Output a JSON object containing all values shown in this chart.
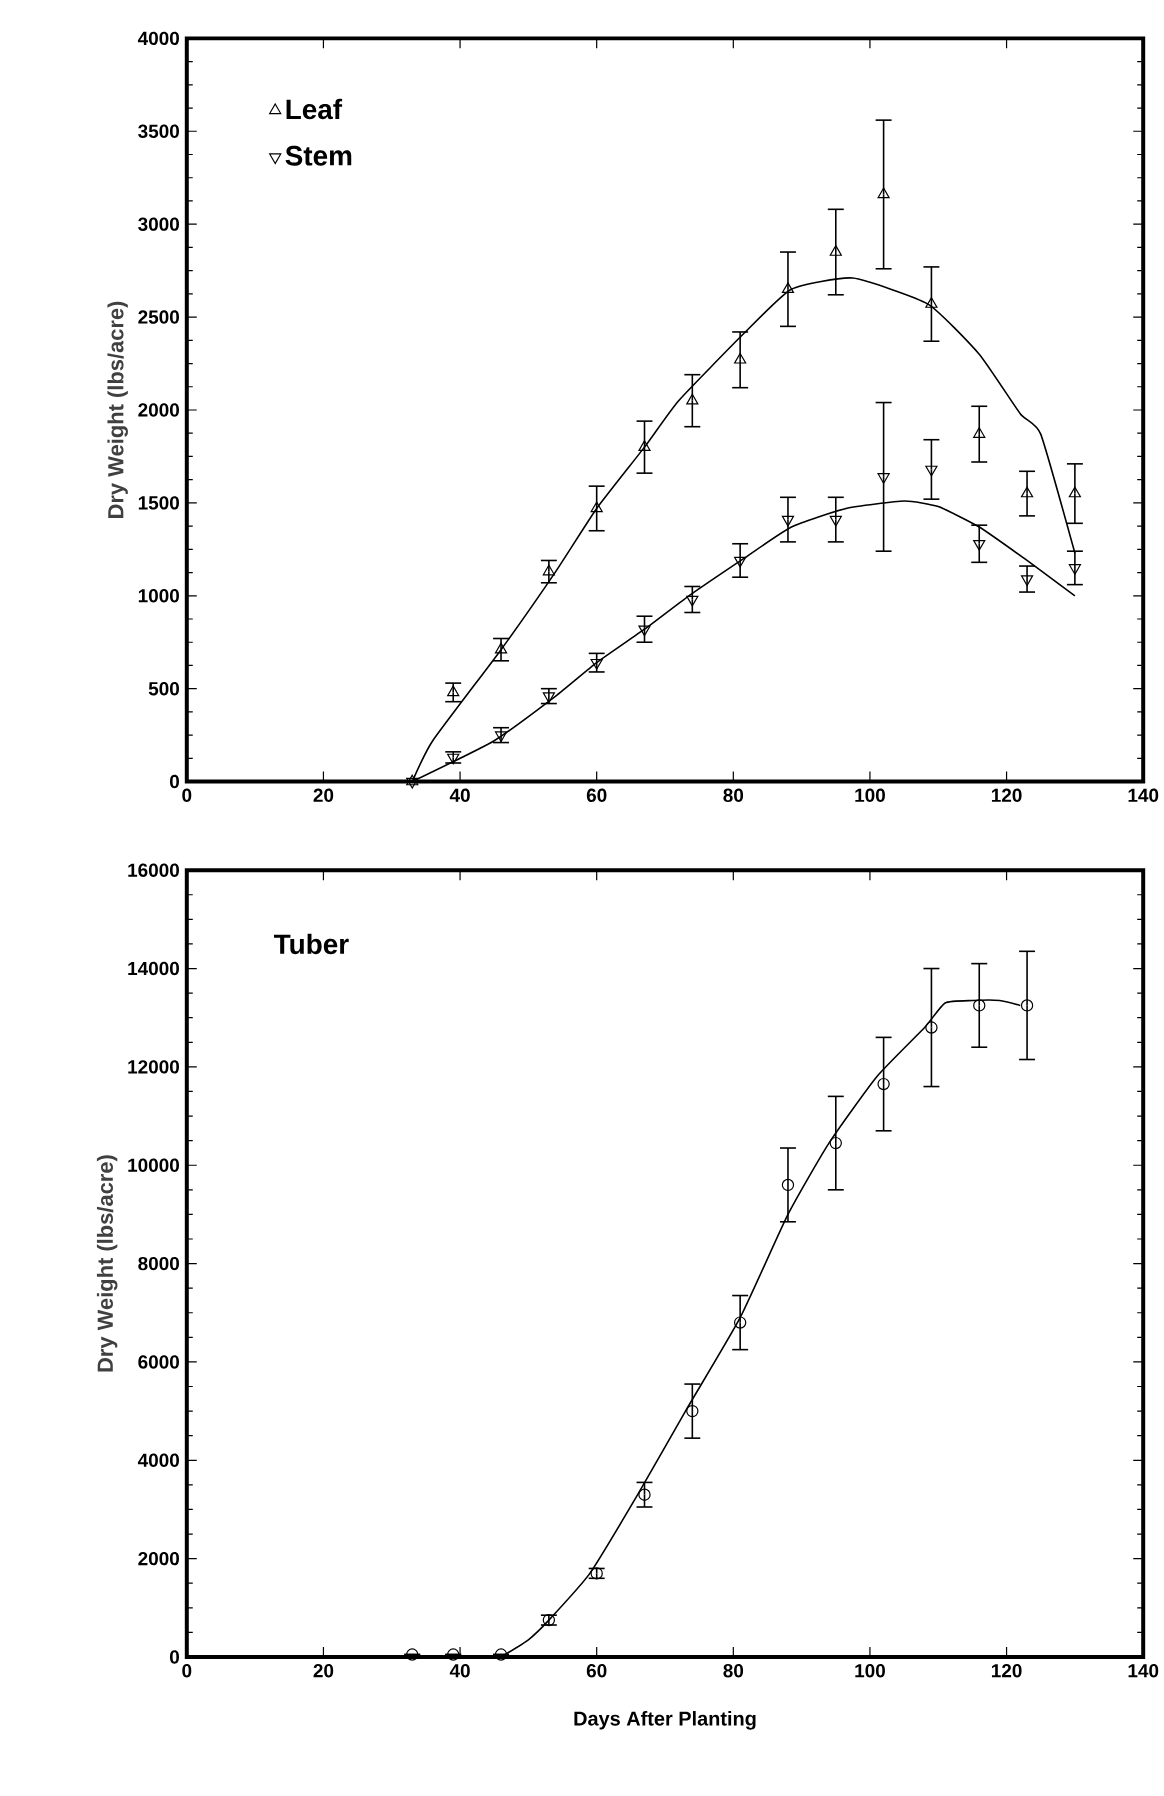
{
  "chart_data": [
    {
      "type": "scatter",
      "ylabel": "Dry Weight  (lbs/acre)",
      "xlim": [
        0,
        140
      ],
      "xticks": [
        0,
        20,
        40,
        60,
        80,
        100,
        120,
        140
      ],
      "ylim": [
        0,
        4000
      ],
      "yticks": [
        0,
        500,
        1000,
        1500,
        2000,
        2500,
        3000,
        3500,
        4000
      ],
      "legend": "top left",
      "series": [
        {
          "name": "Leaf",
          "color": "#000000",
          "marker": "triangle",
          "x": [
            33,
            39,
            46,
            53,
            60,
            67,
            74,
            81,
            88,
            95,
            102,
            109,
            116,
            123,
            130
          ],
          "values": [
            0,
            480,
            710,
            1130,
            1470,
            1800,
            2050,
            2270,
            2650,
            2850,
            3160,
            2570,
            1870,
            1550,
            1550
          ],
          "errors": [
            null,
            50,
            60,
            60,
            120,
            140,
            140,
            150,
            200,
            230,
            400,
            200,
            150,
            120,
            160
          ]
        },
        {
          "name": "Stem",
          "color": "#000000",
          "marker": "triangle_down",
          "x": [
            33,
            39,
            46,
            53,
            60,
            67,
            74,
            81,
            88,
            95,
            102,
            109,
            116,
            123,
            130
          ],
          "values": [
            0,
            130,
            250,
            460,
            640,
            820,
            980,
            1190,
            1410,
            1410,
            1640,
            1680,
            1280,
            1090,
            1150
          ],
          "errors": [
            null,
            30,
            40,
            40,
            50,
            70,
            70,
            90,
            120,
            120,
            400,
            160,
            100,
            70,
            90
          ]
        },
        {
          "type": "line",
          "color": "#000000",
          "x": [
            33,
            36,
            46,
            54,
            60,
            67,
            72,
            81.5,
            88.5,
            97.5,
            108.5,
            116,
            122,
            125,
            130
          ],
          "values": [
            0,
            220,
            710,
            1130,
            1470,
            1800,
            2050,
            2410,
            2650,
            2710,
            2570,
            2300,
            1980,
            1870,
            1230
          ]
        },
        {
          "type": "line",
          "color": "#000000",
          "x": [
            33,
            45,
            54,
            60,
            67,
            73.5,
            81.5,
            88.5,
            96.5,
            105,
            110,
            116,
            123,
            130
          ],
          "values": [
            0,
            220,
            460,
            640,
            820,
            1000,
            1200,
            1370,
            1470,
            1510,
            1480,
            1370,
            1190,
            1000
          ]
        }
      ]
    },
    {
      "type": "scatter",
      "xlabel": "Days After Planting",
      "ylabel": "Dry Weight  (lbs/acre)",
      "xlim": [
        0,
        140
      ],
      "xticks": [
        0,
        20,
        40,
        60,
        80,
        100,
        120,
        140
      ],
      "ylim": [
        0,
        16000
      ],
      "yticks": [
        0,
        2000,
        4000,
        6000,
        8000,
        10000,
        12000,
        14000,
        16000
      ],
      "legend": "top left",
      "series": [
        {
          "name": "Tuber",
          "color": "#000000",
          "marker": "circle",
          "x": [
            33,
            39,
            46,
            53,
            60,
            67,
            74,
            81,
            88,
            95,
            102,
            109,
            116,
            123
          ],
          "values": [
            50,
            50,
            50,
            750,
            1700,
            3300,
            5000,
            6800,
            9600,
            10450,
            11650,
            12800,
            13250,
            13250
          ],
          "errors": [
            null,
            null,
            null,
            100,
            100,
            250,
            550,
            550,
            750,
            950,
            950,
            1200,
            850,
            1100
          ]
        },
        {
          "type": "line",
          "color": "#000000",
          "x": [
            46,
            50,
            53,
            59,
            66,
            73,
            81,
            88,
            94,
            101,
            108,
            111,
            115,
            119,
            122
          ],
          "values": [
            0,
            350,
            750,
            1700,
            3300,
            5000,
            6900,
            9000,
            10450,
            11800,
            12800,
            13300,
            13350,
            13350,
            13250
          ]
        }
      ]
    }
  ]
}
